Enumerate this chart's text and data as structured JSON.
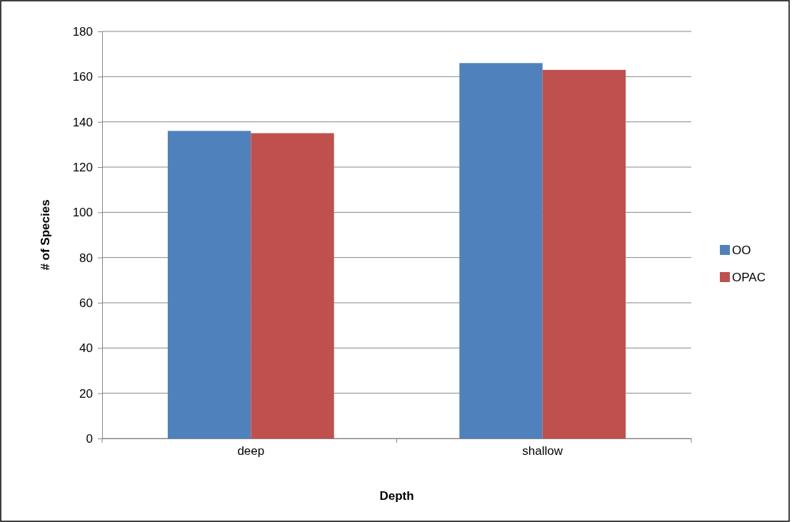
{
  "chart_data": {
    "type": "bar",
    "xlabel": "Depth",
    "ylabel": "# of Species",
    "categories": [
      "deep",
      "shallow"
    ],
    "series": [
      {
        "name": "OO",
        "color": "#4f81bd",
        "values": [
          136,
          166
        ]
      },
      {
        "name": "OPAC",
        "color": "#c0504d",
        "values": [
          135,
          163
        ]
      }
    ],
    "ylim": [
      0,
      180
    ],
    "yticks": [
      0,
      20,
      40,
      60,
      80,
      100,
      120,
      140,
      160,
      180
    ],
    "grid": "y",
    "legend": "right"
  }
}
